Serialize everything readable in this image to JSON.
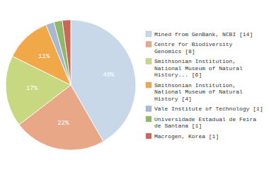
{
  "chart_data": {
    "type": "pie",
    "categories": [
      "Mined from GenBank, NCBI [14]",
      "Centre for Biodiversity\nGenomics [8]",
      "Smithsonian Institution,\nNational Museum of Natural\nHistory... [6]",
      "Smithsonian Institution,\nNational Museum of Natural\nHistory [4]",
      "Vale Institute of Technology [1]",
      "Universidade Estadual de Feira\nde Santana [1]",
      "Macrogen, Korea [1]"
    ],
    "values": [
      40,
      22,
      17,
      11,
      2,
      2,
      2
    ],
    "value_labels": [
      "40%",
      "22%",
      "17%",
      "11%",
      null,
      null,
      null
    ],
    "colors": [
      "#c8d8e8",
      "#e8a888",
      "#c8d880",
      "#f0a848",
      "#a8b8d0",
      "#90b868",
      "#c86858"
    ],
    "data_labels": true,
    "legend": "right"
  }
}
